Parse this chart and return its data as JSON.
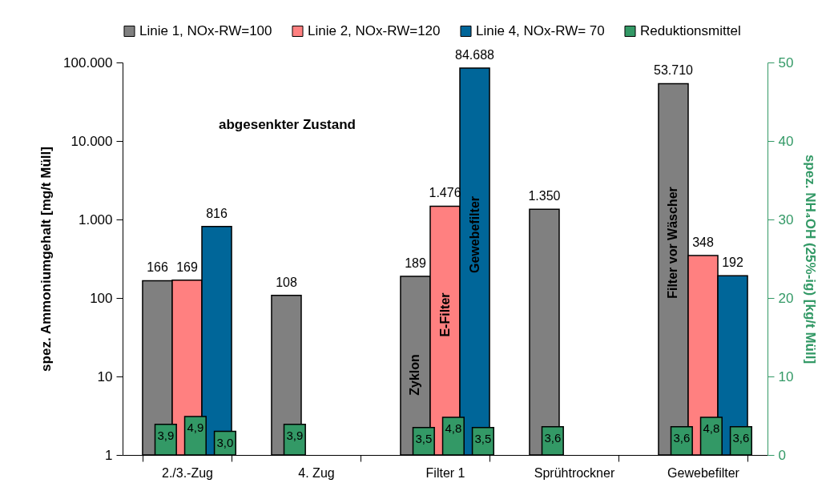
{
  "chart_data": {
    "type": "bar",
    "categories": [
      "2./3.-Zug",
      "4. Zug",
      "Filter 1",
      "Sprühtrockner",
      "Gewebefilter"
    ],
    "ylabel": "spez. Ammoniumgehalt [mg/t Müll]",
    "y2label": "spez. NH₄OH (25%-ig) [kg/t Müll]",
    "log": "y",
    "legend": "top",
    "ylim": [
      1,
      100000
    ],
    "yticks": [
      1,
      10,
      100,
      {
        "value": 1000,
        "label": "1.000"
      },
      {
        "value": 10000,
        "label": "10.000"
      },
      {
        "value": 100000,
        "label": "100.000"
      }
    ],
    "y2lim": [
      0,
      50
    ],
    "y2ticks": [
      0,
      10,
      20,
      30,
      40,
      50
    ],
    "series": [
      {
        "name": "Linie 1, NOx-RW=100",
        "color": "#808080",
        "values": [
          166,
          108,
          189,
          1350,
          53710
        ],
        "value_labels": [
          "166",
          "108",
          "189",
          "1.350",
          "53.710"
        ]
      },
      {
        "name": "Linie 2, NOx-RW=120",
        "color": "#ff8080",
        "values": [
          169,
          null,
          1476,
          null,
          348
        ],
        "value_labels": [
          "169",
          null,
          "1.476",
          null,
          "348"
        ]
      },
      {
        "name": "Linie 4, NOx-RW= 70",
        "color": "#006699",
        "values": [
          816,
          null,
          84688,
          null,
          192
        ],
        "value_labels": [
          "816",
          null,
          "84.688",
          null,
          "192"
        ]
      },
      {
        "name": "Reduktionsmittel",
        "color": "#339966",
        "axis": "y2",
        "values": [
          3.9,
          3.9,
          3.5,
          3.6,
          3.6
        ],
        "value_labels": [
          "3,9",
          "3,9",
          "3,5",
          "3,6",
          "3,6"
        ]
      },
      {
        "color": "#339966",
        "axis": "y2",
        "values": [
          4.9,
          null,
          4.8,
          null,
          4.8
        ],
        "value_labels": [
          "4,9",
          null,
          "4,8",
          null,
          "4,8"
        ]
      },
      {
        "color": "#339966",
        "axis": "y2",
        "values": [
          3.0,
          null,
          3.5,
          null,
          3.6
        ],
        "value_labels": [
          "3,0",
          null,
          "3,5",
          null,
          "3,6"
        ]
      }
    ],
    "annotations": [
      "abgesenkter Zustand",
      "Zyklon",
      "E-Filter",
      "Gewebefilter",
      "Filter vor Wäscher"
    ]
  }
}
